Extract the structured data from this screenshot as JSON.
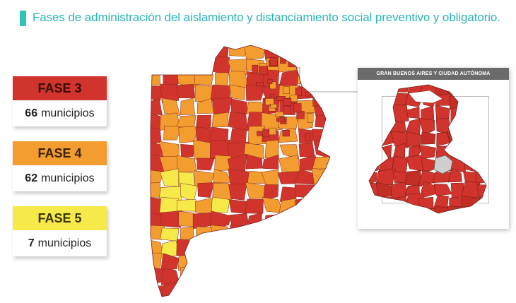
{
  "title": "Fases de administración del aislamiento y distanciamiento social preventivo y obligatorio.",
  "colors": {
    "accent": "#2bb5b5",
    "fase3": "#d0342c",
    "fase4": "#f39c2f",
    "fase5": "#f6e94a"
  },
  "phases": [
    {
      "label": "FASE 3",
      "count": "66",
      "unit": "municipios"
    },
    {
      "label": "FASE 4",
      "count": "62",
      "unit": "municipios"
    },
    {
      "label": "FASE 5",
      "count": "7",
      "unit": "municipios"
    }
  ],
  "inset": {
    "title": "GRAN BUENOS AIRES Y CIUDAD AUTÓNOMA"
  }
}
